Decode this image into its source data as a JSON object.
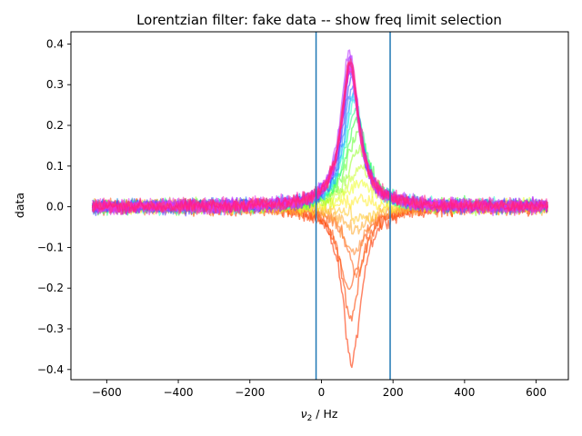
{
  "chart_data": {
    "type": "line",
    "title": "Lorentzian filter: fake data -- show freq limit selection",
    "xlabel_symbol": "ν",
    "xlabel_subscript": "2",
    "xlabel_unit": " / Hz",
    "ylabel": "data",
    "xlim": [
      -700,
      690
    ],
    "ylim": [
      -0.425,
      0.43
    ],
    "x_ticks": [
      -600,
      -400,
      -200,
      0,
      200,
      400,
      600
    ],
    "x_tick_labels": [
      "−600",
      "−400",
      "−200",
      "0",
      "200",
      "400",
      "600"
    ],
    "y_ticks": [
      -0.4,
      -0.3,
      -0.2,
      -0.1,
      0.0,
      0.1,
      0.2,
      0.3,
      0.4
    ],
    "y_tick_labels": [
      "−0.4",
      "−0.3",
      "−0.2",
      "−0.1",
      "0.0",
      "0.1",
      "0.2",
      "0.3",
      "0.4"
    ],
    "freq_limits": [
      -15,
      192
    ],
    "freq_limit_color": "#1f77b4",
    "x_range": [
      -640,
      632
    ],
    "noise_amplitude": 0.012,
    "series_count": 32,
    "series": [
      {
        "color": "#ff3300",
        "peak": -0.39,
        "center": 85,
        "width": 30
      },
      {
        "color": "#ff4400",
        "peak": -0.27,
        "center": 82,
        "width": 32
      },
      {
        "color": "#ff5510",
        "peak": -0.2,
        "center": 78,
        "width": 34
      },
      {
        "color": "#ff6620",
        "peak": -0.16,
        "center": 100,
        "width": 35
      },
      {
        "color": "#ff8830",
        "peak": -0.11,
        "center": 90,
        "width": 38
      },
      {
        "color": "#ffaa30",
        "peak": -0.06,
        "center": 95,
        "width": 40
      },
      {
        "color": "#ffcc33",
        "peak": -0.03,
        "center": 110,
        "width": 40
      },
      {
        "color": "#ffee33",
        "peak": 0.02,
        "center": 105,
        "width": 40
      },
      {
        "color": "#eeff33",
        "peak": 0.06,
        "center": 110,
        "width": 40
      },
      {
        "color": "#ccff33",
        "peak": 0.1,
        "center": 108,
        "width": 38
      },
      {
        "color": "#99ff33",
        "peak": 0.14,
        "center": 105,
        "width": 36
      },
      {
        "color": "#66ff33",
        "peak": 0.18,
        "center": 100,
        "width": 36
      },
      {
        "color": "#33ff44",
        "peak": 0.22,
        "center": 98,
        "width": 34
      },
      {
        "color": "#33ff88",
        "peak": 0.24,
        "center": 95,
        "width": 34
      },
      {
        "color": "#33ffcc",
        "peak": 0.26,
        "center": 92,
        "width": 32
      },
      {
        "color": "#33ddff",
        "peak": 0.27,
        "center": 90,
        "width": 32
      },
      {
        "color": "#33aaff",
        "peak": 0.28,
        "center": 88,
        "width": 30
      },
      {
        "color": "#3377ff",
        "peak": 0.3,
        "center": 86,
        "width": 30
      },
      {
        "color": "#3344ff",
        "peak": 0.32,
        "center": 84,
        "width": 30
      },
      {
        "color": "#5533ff",
        "peak": 0.33,
        "center": 82,
        "width": 30
      },
      {
        "color": "#7733ff",
        "peak": 0.34,
        "center": 80,
        "width": 30
      },
      {
        "color": "#9933ff",
        "peak": 0.35,
        "center": 80,
        "width": 30
      },
      {
        "color": "#aa33ff",
        "peak": 0.36,
        "center": 80,
        "width": 30
      },
      {
        "color": "#bb33ff",
        "peak": 0.38,
        "center": 78,
        "width": 30
      },
      {
        "color": "#cc33ff",
        "peak": 0.34,
        "center": 80,
        "width": 30
      },
      {
        "color": "#dd33ff",
        "peak": 0.33,
        "center": 80,
        "width": 30
      },
      {
        "color": "#ee33ee",
        "peak": 0.34,
        "center": 80,
        "width": 30
      },
      {
        "color": "#ff33cc",
        "peak": 0.35,
        "center": 80,
        "width": 30
      },
      {
        "color": "#ff33aa",
        "peak": 0.34,
        "center": 80,
        "width": 30
      },
      {
        "color": "#ff3388",
        "peak": 0.35,
        "center": 80,
        "width": 30
      },
      {
        "color": "#ff3366",
        "peak": 0.36,
        "center": 80,
        "width": 30
      },
      {
        "color": "#ff1493",
        "peak": 0.36,
        "center": 82,
        "width": 30
      }
    ]
  }
}
